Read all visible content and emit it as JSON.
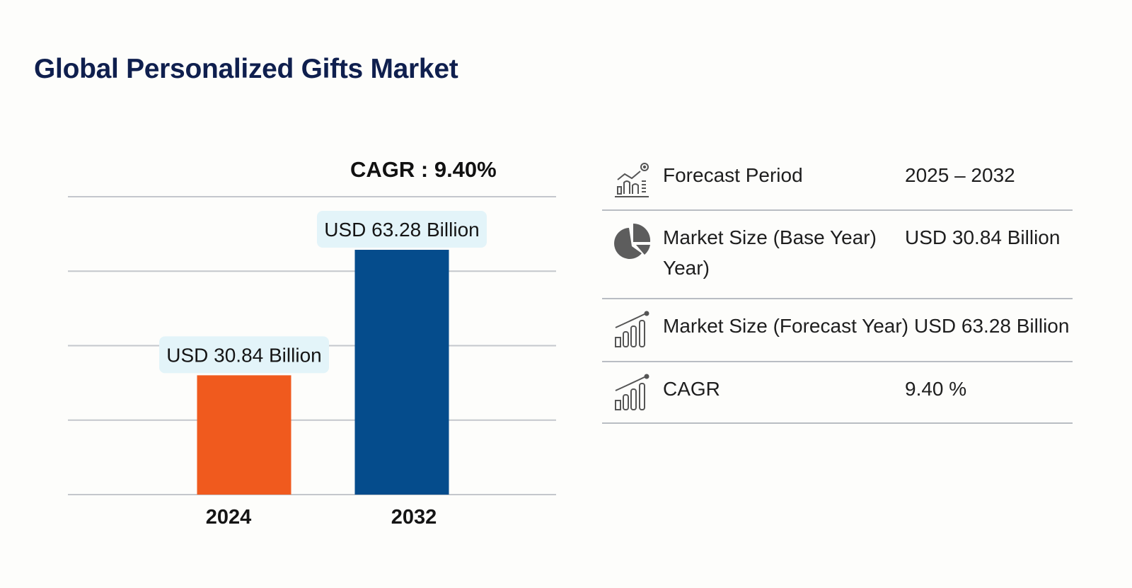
{
  "title": "Global Personalized Gifts Market",
  "chart_data": {
    "type": "bar",
    "title": "CAGR : 9.40%",
    "categories": [
      "2024",
      "2032"
    ],
    "values": [
      30.84,
      63.28
    ],
    "data_labels": [
      "USD 30.84 Billion",
      "USD 63.28 Billion"
    ],
    "colors": [
      "#f05a1e",
      "#054c8c"
    ],
    "unit": "USD Billion",
    "ylim": [
      0,
      77
    ],
    "grid": true,
    "xlabel": "",
    "ylabel": ""
  },
  "table": [
    {
      "icon": "chart-forecast-icon",
      "label": "Forecast Period",
      "value": "2025 – 2032"
    },
    {
      "icon": "pie-chart-icon",
      "label": "Market Size (Base Year) Year)",
      "value": "USD 30.84 Billion"
    },
    {
      "icon": "growth-bars-icon",
      "label": "Market Size (Forecast Year)",
      "value": "USD 63.28 Billion"
    },
    {
      "icon": "growth-bars-icon",
      "label": "CAGR",
      "value": "9.40 %"
    }
  ]
}
